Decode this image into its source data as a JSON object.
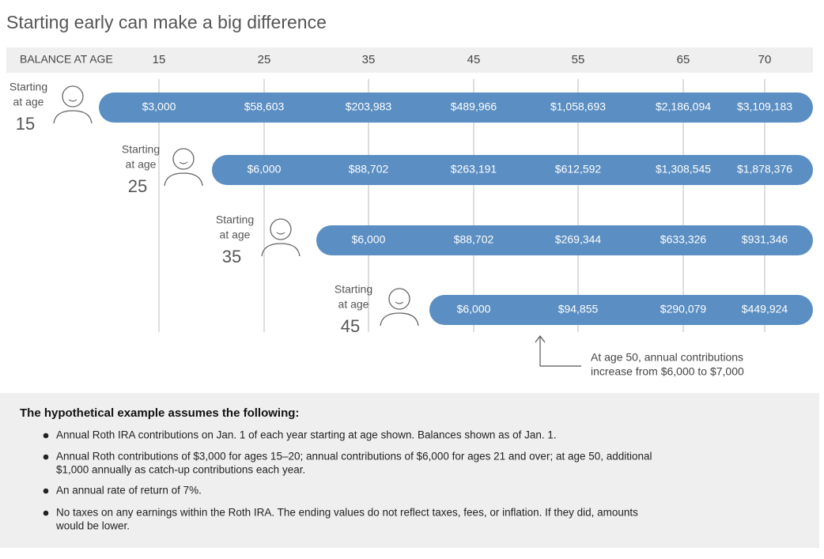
{
  "title": "Starting early can make a big difference",
  "header": {
    "label": "BALANCE AT AGE",
    "ages": [
      "15",
      "25",
      "35",
      "45",
      "55",
      "65",
      "70"
    ]
  },
  "rows": [
    {
      "label": [
        "Starting",
        "at age"
      ],
      "age": "15",
      "values": [
        "$3,000",
        "$58,603",
        "$203,983",
        "$489,966",
        "$1,058,693",
        "$2,186,094",
        "$3,109,183"
      ]
    },
    {
      "label": [
        "Starting",
        "at age"
      ],
      "age": "25",
      "values": [
        "$6,000",
        "$88,702",
        "$263,191",
        "$612,592",
        "$1,308,545",
        "$1,878,376"
      ]
    },
    {
      "label": [
        "Starting",
        "at age"
      ],
      "age": "35",
      "values": [
        "$6,000",
        "$88,702",
        "$269,344",
        "$633,326",
        "$931,346"
      ]
    },
    {
      "label": [
        "Starting",
        "at age"
      ],
      "age": "45",
      "values": [
        "$6,000",
        "$94,855",
        "$290,079",
        "$449,924"
      ]
    }
  ],
  "annotation": [
    "At age 50, annual contributions",
    "increase from $6,000 to $7,000"
  ],
  "notes": {
    "heading": "The hypothetical example assumes the following:",
    "items": [
      [
        "Annual Roth IRA contributions on Jan. 1 of each year starting at age shown. Balances shown as of Jan. 1."
      ],
      [
        "Annual Roth contributions of $3,000 for ages 15–20; annual contributions of $6,000 for ages 21 and over; at age 50, additional",
        "$1,000 annually as catch-up contributions each year."
      ],
      [
        "An annual rate of return of 7%."
      ],
      [
        "No taxes on any earnings within the Roth IRA. The ending values do not reflect taxes, fees, or inflation. If they did, amounts",
        "would be lower."
      ]
    ]
  }
}
